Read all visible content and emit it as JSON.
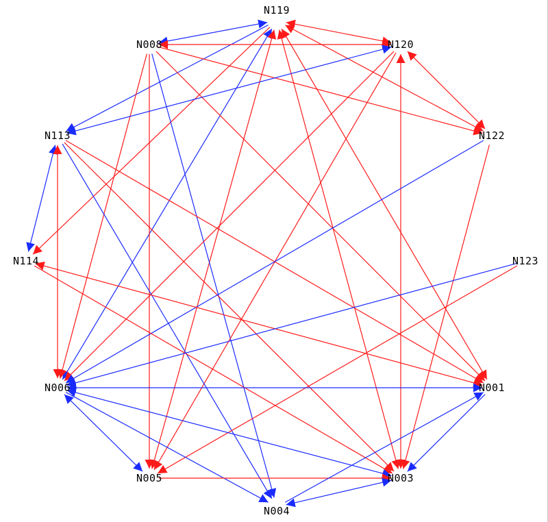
{
  "graph": {
    "colors": {
      "red": "#ff1a1a",
      "blue": "#1a2bff",
      "label": "#000000"
    },
    "nodes": [
      {
        "id": "N119",
        "label": "N119"
      },
      {
        "id": "N008",
        "label": "N008"
      },
      {
        "id": "N120",
        "label": "N120"
      },
      {
        "id": "N113",
        "label": "N113"
      },
      {
        "id": "N122",
        "label": "N122"
      },
      {
        "id": "N114",
        "label": "N114"
      },
      {
        "id": "N123",
        "label": "N123"
      },
      {
        "id": "N006",
        "label": "N006"
      },
      {
        "id": "N001",
        "label": "N001"
      },
      {
        "id": "N005",
        "label": "N005"
      },
      {
        "id": "N003",
        "label": "N003"
      },
      {
        "id": "N004",
        "label": "N004"
      }
    ],
    "edges": [
      {
        "from": "N119",
        "to": "N008",
        "color": "blue",
        "dir": "both"
      },
      {
        "from": "N119",
        "to": "N120",
        "color": "red",
        "dir": "both"
      },
      {
        "from": "N119",
        "to": "N113",
        "color": "blue",
        "dir": "forward"
      },
      {
        "from": "N119",
        "to": "N122",
        "color": "red",
        "dir": "both"
      },
      {
        "from": "N119",
        "to": "N114",
        "color": "red",
        "dir": "forward"
      },
      {
        "from": "N119",
        "to": "N006",
        "color": "blue",
        "dir": "both"
      },
      {
        "from": "N119",
        "to": "N005",
        "color": "red",
        "dir": "both"
      },
      {
        "from": "N119",
        "to": "N003",
        "color": "red",
        "dir": "both"
      },
      {
        "from": "N119",
        "to": "N001",
        "color": "red",
        "dir": "both"
      },
      {
        "from": "N008",
        "to": "N120",
        "color": "red",
        "dir": "both"
      },
      {
        "from": "N008",
        "to": "N122",
        "color": "red",
        "dir": "forward"
      },
      {
        "from": "N008",
        "to": "N006",
        "color": "red",
        "dir": "forward"
      },
      {
        "from": "N008",
        "to": "N005",
        "color": "red",
        "dir": "forward"
      },
      {
        "from": "N008",
        "to": "N004",
        "color": "blue",
        "dir": "forward"
      },
      {
        "from": "N008",
        "to": "N001",
        "color": "red",
        "dir": "forward"
      },
      {
        "from": "N120",
        "to": "N113",
        "color": "blue",
        "dir": "both"
      },
      {
        "from": "N120",
        "to": "N122",
        "color": "red",
        "dir": "both"
      },
      {
        "from": "N120",
        "to": "N006",
        "color": "red",
        "dir": "forward"
      },
      {
        "from": "N120",
        "to": "N003",
        "color": "red",
        "dir": "both"
      },
      {
        "from": "N120",
        "to": "N005",
        "color": "red",
        "dir": "forward"
      },
      {
        "from": "N113",
        "to": "N114",
        "color": "blue",
        "dir": "both"
      },
      {
        "from": "N113",
        "to": "N006",
        "color": "red",
        "dir": "both"
      },
      {
        "from": "N113",
        "to": "N004",
        "color": "blue",
        "dir": "forward"
      },
      {
        "from": "N113",
        "to": "N001",
        "color": "red",
        "dir": "forward"
      },
      {
        "from": "N113",
        "to": "N003",
        "color": "red",
        "dir": "forward"
      },
      {
        "from": "N122",
        "to": "N006",
        "color": "blue",
        "dir": "forward"
      },
      {
        "from": "N122",
        "to": "N003",
        "color": "red",
        "dir": "forward"
      },
      {
        "from": "N114",
        "to": "N001",
        "color": "red",
        "dir": "both"
      },
      {
        "from": "N114",
        "to": "N003",
        "color": "red",
        "dir": "forward"
      },
      {
        "from": "N123",
        "to": "N006",
        "color": "blue",
        "dir": "forward"
      },
      {
        "from": "N123",
        "to": "N005",
        "color": "red",
        "dir": "forward"
      },
      {
        "from": "N006",
        "to": "N001",
        "color": "blue",
        "dir": "both"
      },
      {
        "from": "N006",
        "to": "N005",
        "color": "blue",
        "dir": "both"
      },
      {
        "from": "N006",
        "to": "N003",
        "color": "blue",
        "dir": "both"
      },
      {
        "from": "N006",
        "to": "N004",
        "color": "blue",
        "dir": "forward"
      },
      {
        "from": "N005",
        "to": "N003",
        "color": "red",
        "dir": "forward"
      },
      {
        "from": "N001",
        "to": "N003",
        "color": "blue",
        "dir": "forward"
      },
      {
        "from": "N004",
        "to": "N003",
        "color": "blue",
        "dir": "both"
      },
      {
        "from": "N004",
        "to": "N001",
        "color": "blue",
        "dir": "forward"
      }
    ]
  }
}
